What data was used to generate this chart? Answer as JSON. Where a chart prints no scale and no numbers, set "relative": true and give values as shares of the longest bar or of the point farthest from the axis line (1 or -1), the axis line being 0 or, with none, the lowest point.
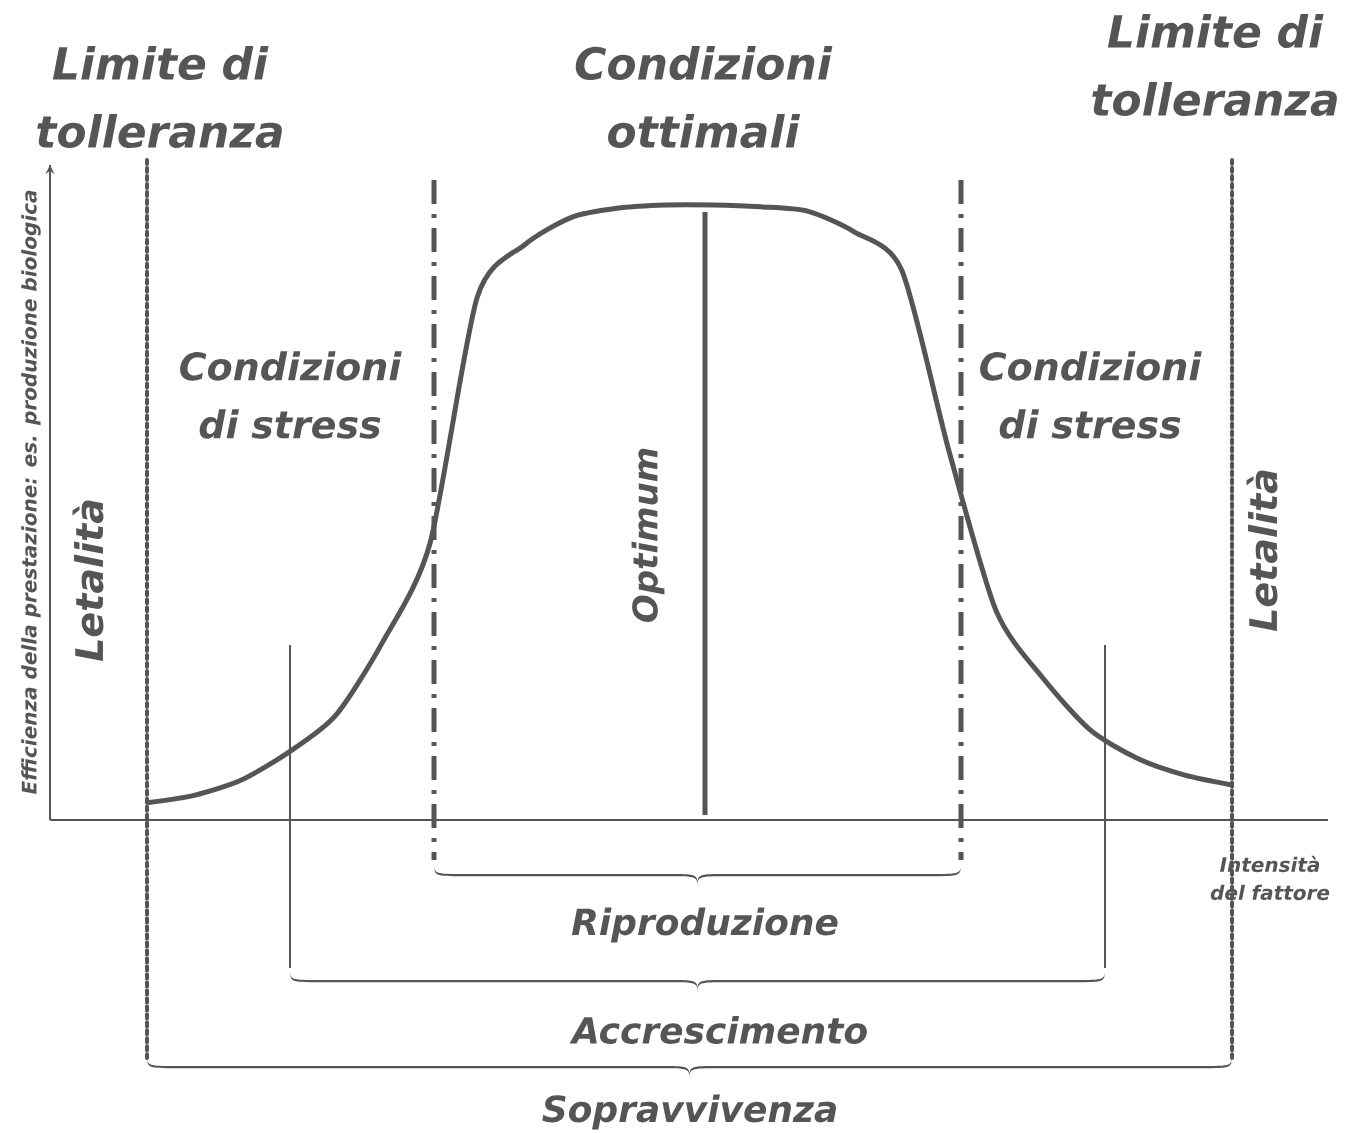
{
  "chart_data": {
    "type": "line",
    "relative": true,
    "title": "Condizioni ottimali",
    "xlabel": "Intensità del fattore",
    "ylabel": "Efficienza della prestazione: es. produzione biologica",
    "categories": [
      null,
      null,
      null,
      null,
      null,
      null,
      null,
      null,
      null,
      null,
      null,
      null,
      null,
      null,
      null,
      null,
      null,
      null,
      null,
      null,
      null,
      null,
      null,
      null
    ],
    "series": [
      {
        "color": "#555555",
        "values": [
          0.028,
          0.04,
          0.065,
          0.11,
          0.17,
          0.29,
          0.45,
          0.85,
          0.935,
          0.98,
          0.995,
          1,
          1,
          0.997,
          0.99,
          0.956,
          0.894,
          0.6,
          0.34,
          0.23,
          0.146,
          0.1,
          0.073,
          0.057
        ]
      }
    ],
    "annotations": [
      "Limite di tolleranza",
      "Limite di tolleranza",
      "Condizioni di stress",
      "Condizioni di stress",
      "Letalità",
      "Letalità",
      "Optimum",
      "Riproduzione",
      "Accrescimento",
      "Sopravvivenza"
    ]
  }
}
